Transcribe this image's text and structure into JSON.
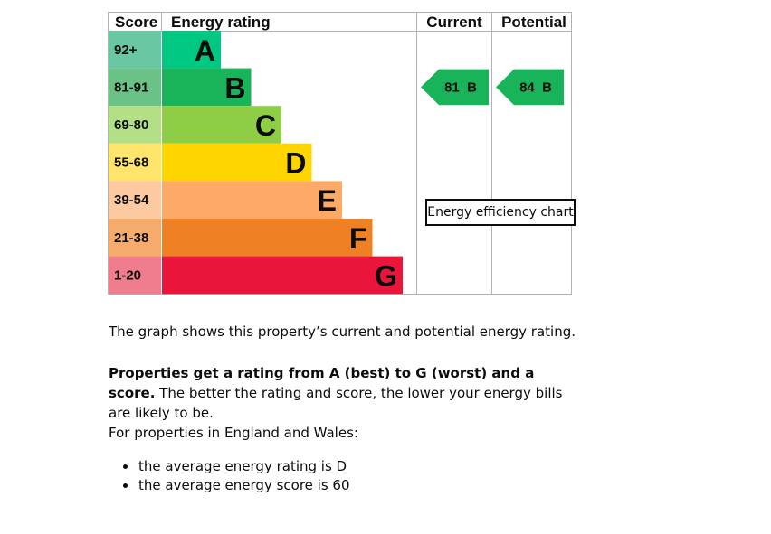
{
  "chart_data": {
    "type": "bar",
    "header": {
      "score": "Score",
      "rating": "Energy rating",
      "current": "Current",
      "potential": "Potential"
    },
    "bands": [
      {
        "letter": "A",
        "score": "92+",
        "color": "#00c781",
        "score_bg": "#69c7a1"
      },
      {
        "letter": "B",
        "score": "81-91",
        "color": "#19b459",
        "score_bg": "#6ac287"
      },
      {
        "letter": "C",
        "score": "69-80",
        "color": "#8dce46",
        "score_bg": "#b3df86"
      },
      {
        "letter": "D",
        "score": "55-68",
        "color": "#ffd500",
        "score_bg": "#ffe56b"
      },
      {
        "letter": "E",
        "score": "39-54",
        "color": "#fcaa65",
        "score_bg": "#fdc9a0"
      },
      {
        "letter": "F",
        "score": "21-38",
        "color": "#ef8023",
        "score_bg": "#f5ab6b"
      },
      {
        "letter": "G",
        "score": "1-20",
        "color": "#e9153b",
        "score_bg": "#f07d8d"
      }
    ],
    "current": {
      "score": 81,
      "letter": "B",
      "label": "81  B",
      "color": "#19b459"
    },
    "potential": {
      "score": 84,
      "letter": "B",
      "label": "84  B",
      "color": "#19b459"
    }
  },
  "tooltip": "Energy efficiency chart",
  "description": "The graph shows this property’s current and potential energy rating.",
  "rating_info_bold": "Properties get a rating from A (best) to G (worst) and a score.",
  "rating_info_rest": " The better the rating and score, the lower your energy bills are likely to be.",
  "england_wales_intro": "For properties in England and Wales:",
  "averages": [
    "the average energy rating is D",
    "the average energy score is 60"
  ]
}
